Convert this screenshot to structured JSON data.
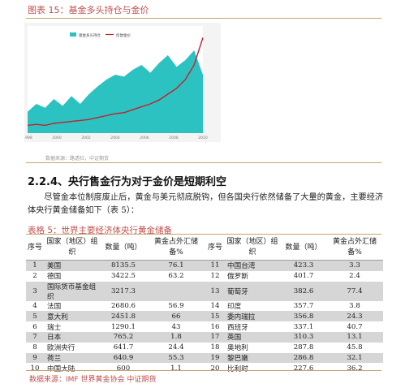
{
  "figure": {
    "title": "图表 15：基金多头持仓与金价",
    "source": "数据来源：路透社，中证期货",
    "legend": [
      "基金多头持仓",
      "伦敦金价"
    ],
    "x_ticks": [
      "1998",
      "2000",
      "2002",
      "2004",
      "2006",
      "2008",
      "2010"
    ],
    "colors": {
      "area": "#2cc2c2",
      "line": "#c0232a"
    }
  },
  "chart_data": {
    "type": "area",
    "x": [
      1998,
      1998.5,
      1999,
      1999.5,
      2000,
      2000.5,
      2001,
      2001.5,
      2002,
      2002.5,
      2003,
      2003.5,
      2004,
      2004.5,
      2005,
      2005.5,
      2006,
      2006.5,
      2007,
      2007.5,
      2008
    ],
    "series": [
      {
        "name": "基金多头持仓",
        "values": [
          22,
          30,
          26,
          35,
          28,
          38,
          30,
          40,
          48,
          55,
          60,
          58,
          65,
          70,
          62,
          72,
          80,
          68,
          75,
          85,
          60
        ]
      },
      {
        "name": "伦敦金价",
        "values": [
          8,
          9,
          8,
          10,
          11,
          12,
          13,
          14,
          16,
          18,
          20,
          21,
          24,
          27,
          30,
          34,
          40,
          46,
          55,
          70,
          98
        ]
      }
    ]
  },
  "section": {
    "heading": "2.2.4、央行售金行为对于金价是短期利空",
    "paragraph": "尽管金本位制度废止后，黄金与美元彻底脱钩，但各国央行依然储备了大量的黄金，主要经济体央行黄金储备如下（表 5）："
  },
  "table": {
    "title": "表格 5：世界主要经济体央行黄金储备",
    "headers": [
      "序号",
      "国家（地区）组织",
      "数量（吨）",
      "黄金占外汇储备%",
      "序号",
      "国家（地区）组织",
      "数量（吨）",
      "黄金占外汇储备%"
    ],
    "rows": [
      [
        "1",
        "美国",
        "8135.5",
        "76.1",
        "11",
        "中国台湾",
        "423.3",
        "3.3"
      ],
      [
        "2",
        "德国",
        "3422.5",
        "63.2",
        "12",
        "俄罗斯",
        "401.7",
        "2.4"
      ],
      [
        "3",
        "国际货币基金组织",
        "3217.3",
        "",
        "13",
        "葡萄牙",
        "382.6",
        "77.4"
      ],
      [
        "4",
        "法国",
        "2680.6",
        "56.9",
        "14",
        "印度",
        "357.7",
        "3.8"
      ],
      [
        "5",
        "意大利",
        "2451.8",
        "66",
        "15",
        "委内瑞拉",
        "356.8",
        "24.3"
      ],
      [
        "6",
        "瑞士",
        "1290.1",
        "43",
        "16",
        "西班牙",
        "337.1",
        "40.7"
      ],
      [
        "7",
        "日本",
        "765.2",
        "1.8",
        "17",
        "英国",
        "310.3",
        "13.1"
      ],
      [
        "8",
        "欧洲央行",
        "641.7",
        "24.4",
        "18",
        "奥地利",
        "287.8",
        "45.8"
      ],
      [
        "9",
        "荷兰",
        "640.9",
        "55.3",
        "19",
        "黎巴嫩",
        "286.8",
        "32.1"
      ],
      [
        "10",
        "中国大陆",
        "600",
        "1.1",
        "20",
        "比利时",
        "227.6",
        "36.2"
      ]
    ],
    "source": "数据来源：IMF 世界黄金协会 中证期货"
  }
}
